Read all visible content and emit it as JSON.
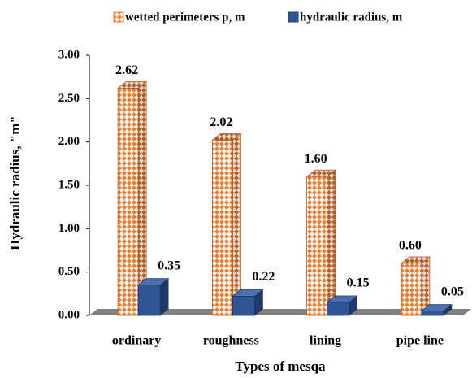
{
  "chart_data": {
    "type": "bar3d",
    "categories": [
      "ordinary",
      "roughness",
      "lining",
      "pipe line"
    ],
    "series": [
      {
        "name": "wetted perimeters p, m",
        "color": "#ed7d31",
        "values": [
          2.62,
          2.02,
          1.6,
          0.6
        ],
        "value_labels": [
          "2.62",
          "2.02",
          "1.60",
          "0.60"
        ]
      },
      {
        "name": "hydraulic radius, m",
        "color": "#2f5597",
        "values": [
          0.35,
          0.22,
          0.15,
          0.05
        ],
        "value_labels": [
          "0.35",
          "0.22",
          "0.15",
          "0.05"
        ]
      }
    ],
    "ylim": [
      0,
      3
    ],
    "yticks": [
      {
        "value": 0,
        "label": "0.00"
      },
      {
        "value": 0.5,
        "label": "0.50"
      },
      {
        "value": 1,
        "label": "1.00"
      },
      {
        "value": 1.5,
        "label": "1.50"
      },
      {
        "value": 2,
        "label": "2.00"
      },
      {
        "value": 2.5,
        "label": "2.50"
      },
      {
        "value": 3,
        "label": "3.00"
      }
    ],
    "xlabel": "Types of mesqa",
    "ylabel": "Hydraulic radius, \"m\""
  }
}
